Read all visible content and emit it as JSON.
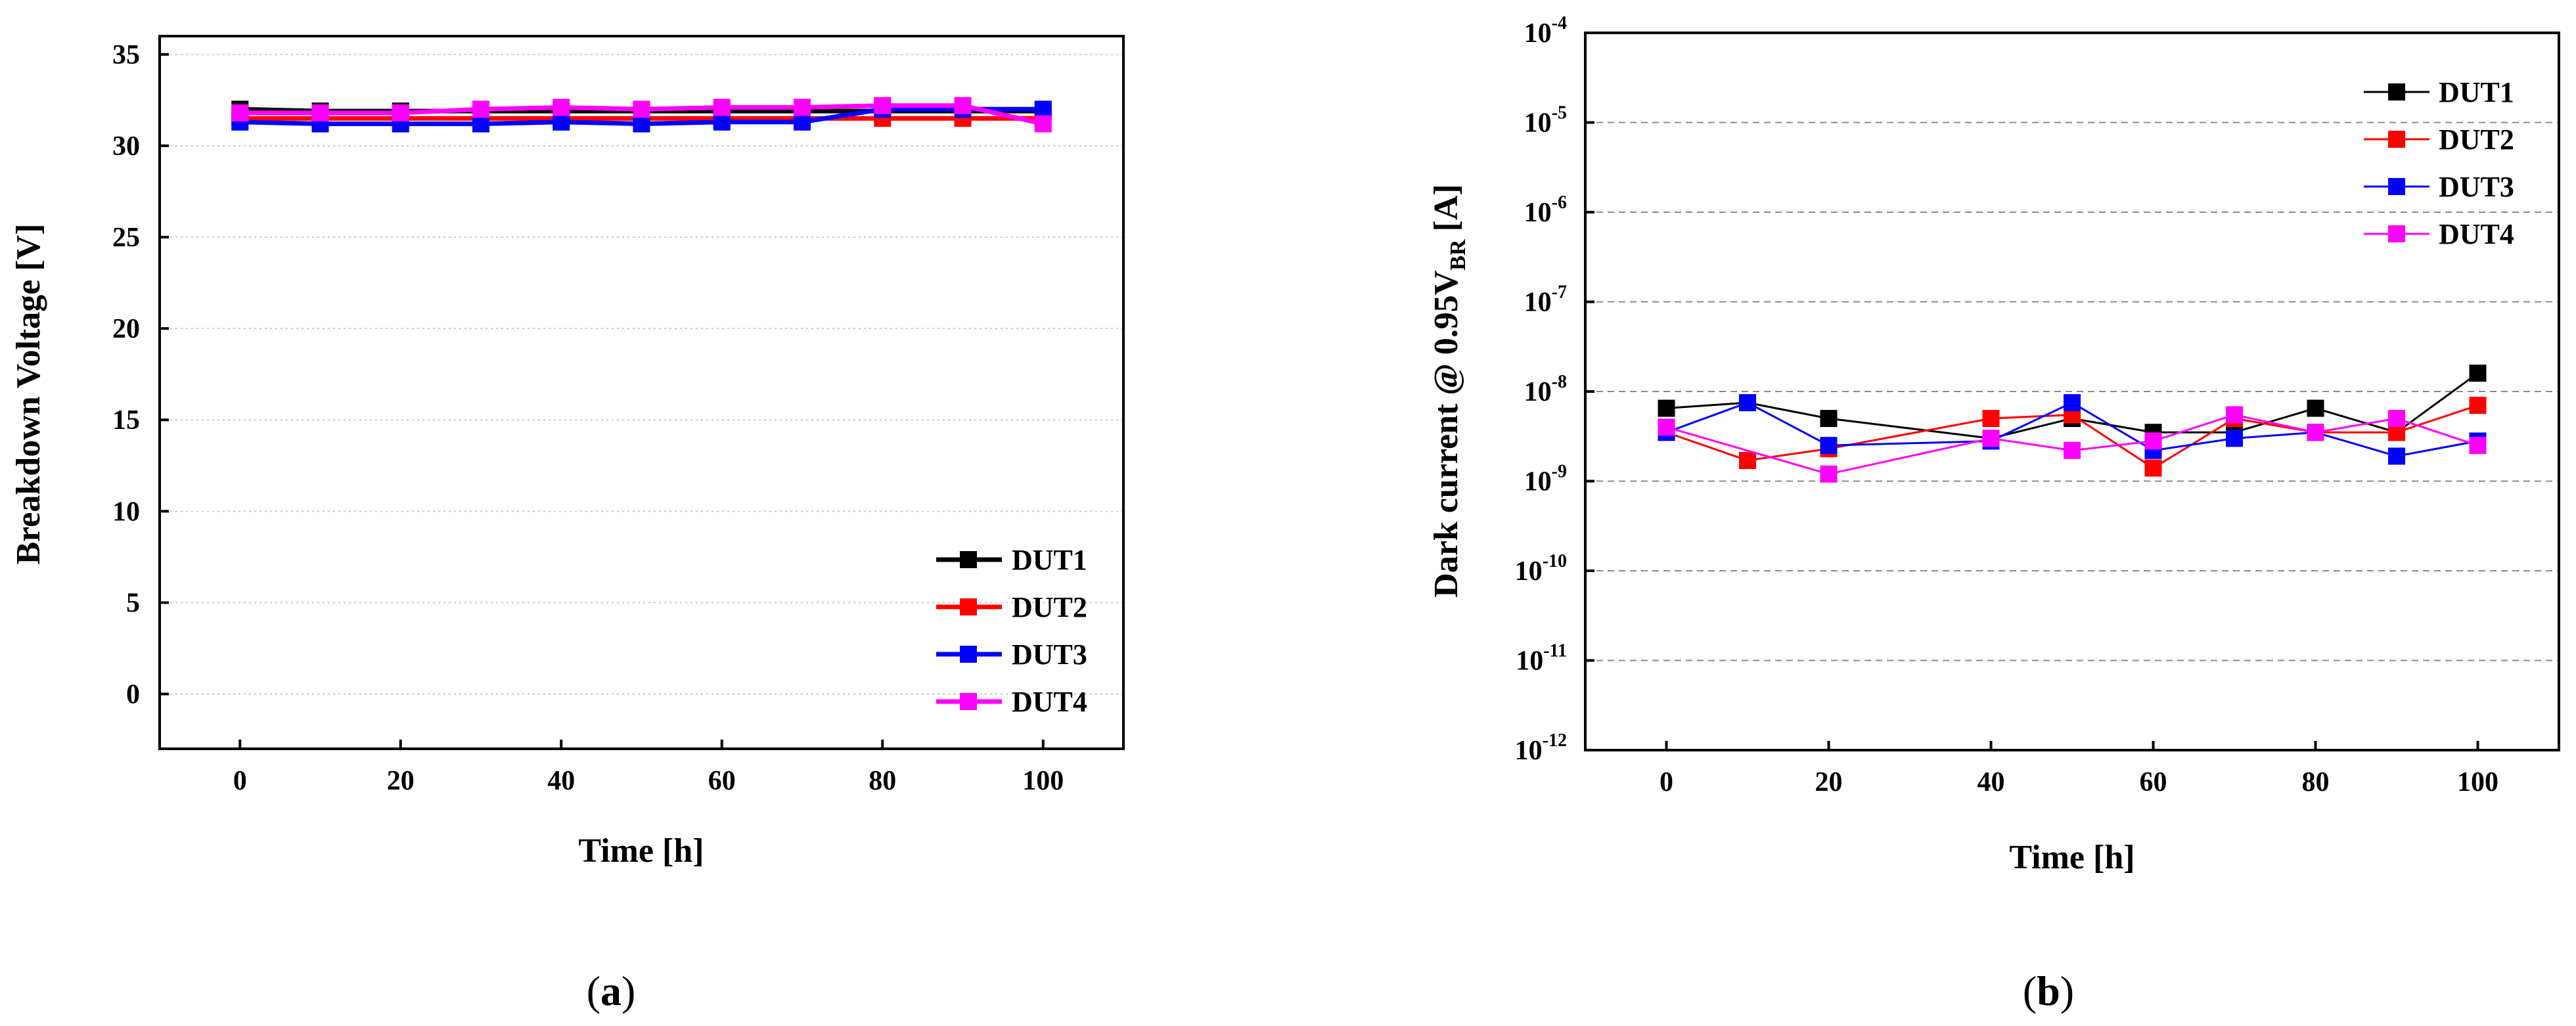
{
  "chart_data": [
    {
      "type": "line",
      "panel": "a",
      "xlabel": "Time [h]",
      "ylabel": "Breakdown Voltage [V]",
      "xlim": [
        -10,
        110
      ],
      "ylim": [
        -3,
        36
      ],
      "x_ticks": [
        "0",
        "20",
        "40",
        "60",
        "80",
        "100"
      ],
      "y_ticks": [
        "0",
        "5",
        "10",
        "15",
        "20",
        "25",
        "30",
        "35"
      ],
      "y_scale": "linear",
      "grid": "horizontal dotted",
      "legend_position": "bottom-right",
      "series": [
        {
          "name": "DUT1",
          "color": "#000000",
          "x": [
            0,
            10,
            20,
            30,
            40,
            50,
            60,
            70,
            80,
            90,
            100
          ],
          "values": [
            32.0,
            31.9,
            31.9,
            31.9,
            31.9,
            31.9,
            31.9,
            31.9,
            31.9,
            31.9,
            31.9
          ]
        },
        {
          "name": "DUT2",
          "color": "#ff0000",
          "x": [
            0,
            10,
            20,
            30,
            40,
            50,
            60,
            70,
            80,
            90,
            100
          ],
          "values": [
            31.5,
            31.5,
            31.5,
            31.5,
            31.5,
            31.5,
            31.5,
            31.5,
            31.5,
            31.5,
            31.5
          ]
        },
        {
          "name": "DUT3",
          "color": "#0000ff",
          "x": [
            0,
            10,
            20,
            30,
            40,
            50,
            60,
            70,
            80,
            90,
            100
          ],
          "values": [
            31.3,
            31.2,
            31.2,
            31.2,
            31.3,
            31.2,
            31.3,
            31.3,
            32.0,
            32.0,
            32.0
          ]
        },
        {
          "name": "DUT4",
          "color": "#ff00ff",
          "x": [
            0,
            10,
            20,
            30,
            40,
            50,
            60,
            70,
            80,
            90,
            100
          ],
          "values": [
            31.8,
            31.8,
            31.8,
            32.0,
            32.1,
            32.0,
            32.1,
            32.1,
            32.2,
            32.2,
            31.2
          ]
        }
      ]
    },
    {
      "type": "line",
      "panel": "b",
      "xlabel": "Time [h]",
      "ylabel": "Dark current @ 0.95V",
      "ylabel_subscript": "BR",
      "ylabel_unit": "[A]",
      "xlim": [
        -10,
        110
      ],
      "ylim_log10": [
        -12,
        -4
      ],
      "y_scale": "log",
      "x_ticks": [
        "0",
        "20",
        "40",
        "60",
        "80",
        "100"
      ],
      "y_ticks": [
        {
          "base": "10",
          "exp": "-4"
        },
        {
          "base": "10",
          "exp": "-5"
        },
        {
          "base": "10",
          "exp": "-6"
        },
        {
          "base": "10",
          "exp": "-7"
        },
        {
          "base": "10",
          "exp": "-8"
        },
        {
          "base": "10",
          "exp": "-9"
        },
        {
          "base": "10",
          "exp": "-10"
        },
        {
          "base": "10",
          "exp": "-11"
        },
        {
          "base": "10",
          "exp": "-12"
        }
      ],
      "grid": "horizontal dashed",
      "legend_position": "top-right",
      "series": [
        {
          "name": "DUT1",
          "color": "#000000",
          "x": [
            0,
            10,
            20,
            40,
            50,
            60,
            70,
            80,
            90,
            100
          ],
          "values": [
            6.5e-09,
            7.5e-09,
            5e-09,
            3e-09,
            5e-09,
            3.5e-09,
            3.5e-09,
            6.5e-09,
            3.5e-09,
            1.6e-08
          ]
        },
        {
          "name": "DUT2",
          "color": "#ff0000",
          "x": [
            0,
            10,
            20,
            40,
            50,
            60,
            70,
            80,
            90,
            100
          ],
          "values": [
            3.5e-09,
            1.7e-09,
            2.3e-09,
            5e-09,
            5.5e-09,
            1.4e-09,
            5e-09,
            3.5e-09,
            3.5e-09,
            7e-09
          ]
        },
        {
          "name": "DUT3",
          "color": "#0000ff",
          "x": [
            0,
            10,
            20,
            40,
            50,
            60,
            70,
            80,
            90,
            100
          ],
          "values": [
            3.5e-09,
            7.5e-09,
            2.5e-09,
            2.8e-09,
            7.5e-09,
            2.2e-09,
            3e-09,
            3.5e-09,
            1.9e-09,
            2.8e-09
          ]
        },
        {
          "name": "DUT4",
          "color": "#ff00ff",
          "x": [
            0,
            20,
            40,
            50,
            60,
            70,
            80,
            90,
            100
          ],
          "values": [
            4e-09,
            1.2e-09,
            3e-09,
            2.2e-09,
            2.8e-09,
            5.5e-09,
            3.5e-09,
            5e-09,
            2.5e-09
          ]
        }
      ]
    }
  ],
  "captions": {
    "a": "a",
    "b": "b"
  }
}
